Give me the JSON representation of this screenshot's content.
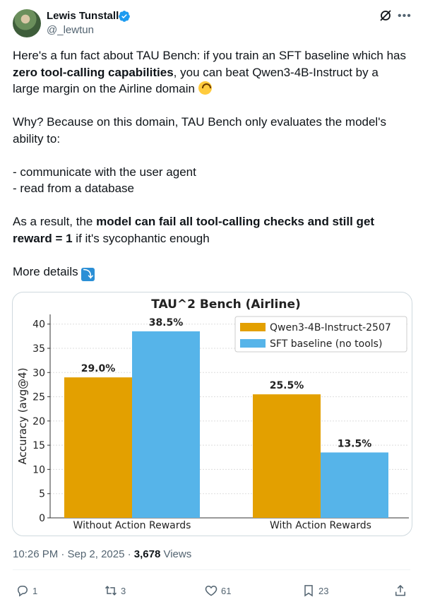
{
  "author": {
    "name": "Lewis Tunstall",
    "handle": "@_lewtun"
  },
  "tweet": {
    "p1_a": "Here's a fun fact about TAU Bench: if you train an SFT baseline which has ",
    "p1_bold": "zero tool-calling capabilities",
    "p1_b": ", you can beat Qwen3-4B-Instruct by a large margin on the Airline domain",
    "p2": "Why? Because on this domain, TAU Bench only evaluates the model's ability to:",
    "bullet1": "- communicate with the user agent",
    "bullet2": "- read from a database",
    "p4_a": "As a result, the ",
    "p4_bold": "model can fail all tool-calling checks and still get reward = 1",
    "p4_b": " if it's sycophantic enough",
    "p5": "More details"
  },
  "meta": {
    "time": "10:26 PM · Sep 2, 2025 · ",
    "views_count": "3,678",
    "views_label": " Views"
  },
  "actions": {
    "replies": "1",
    "reposts": "3",
    "likes": "61",
    "bookmarks": "23"
  },
  "colors": {
    "series1": "#e3a000",
    "series2": "#56b4e9",
    "verified": "#1d9bf0"
  },
  "chart_data": {
    "type": "bar",
    "title": "TAU^2 Bench (Airline)",
    "xlabel": "",
    "ylabel": "Accuracy (avg@4)",
    "categories": [
      "Without Action Rewards",
      "With Action Rewards"
    ],
    "series": [
      {
        "name": "Qwen3-4B-Instruct-2507",
        "values": [
          29.0,
          25.5
        ],
        "labels": [
          "29.0%",
          "25.5%"
        ]
      },
      {
        "name": "SFT baseline (no tools)",
        "values": [
          38.5,
          13.5
        ],
        "labels": [
          "38.5%",
          "13.5%"
        ]
      }
    ],
    "ylim": [
      0,
      42
    ],
    "yticks": [
      0,
      5,
      10,
      15,
      20,
      25,
      30,
      35,
      40
    ],
    "grid": true,
    "legend": "top-right"
  }
}
